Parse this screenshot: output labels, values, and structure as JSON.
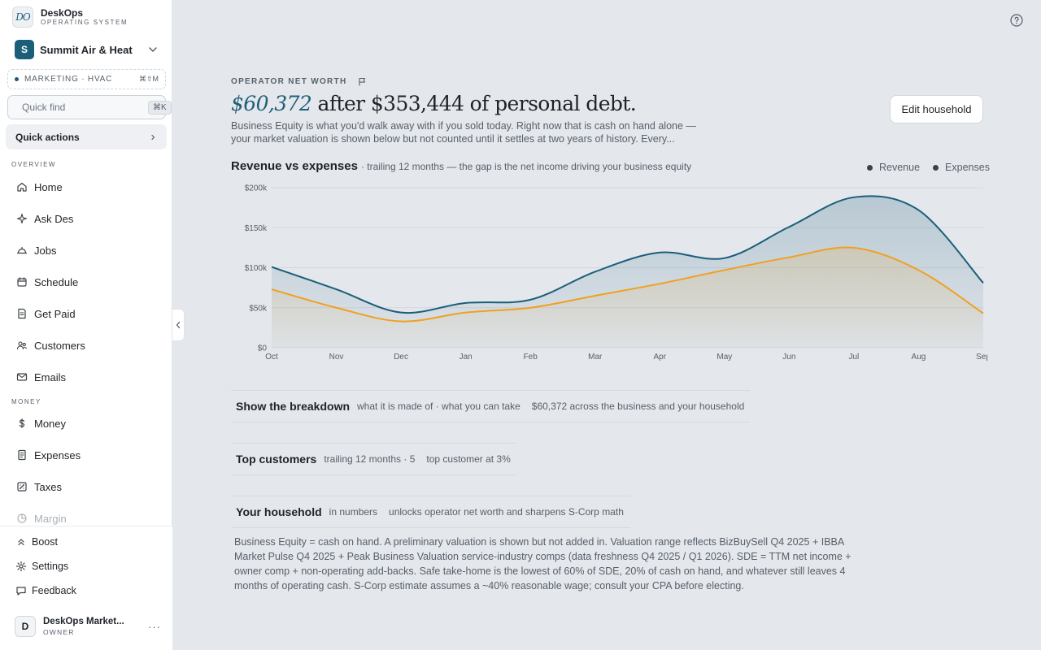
{
  "brand": {
    "name": "DeskOps",
    "subtitle": "OPERATING SYSTEM",
    "logo_text": "DO"
  },
  "org": {
    "initial": "S",
    "name": "Summit Air & Heat"
  },
  "tag": {
    "label": "MARKETING · HVAC",
    "shortcut": "⌘⇧M"
  },
  "search": {
    "placeholder": "Quick find",
    "shortcut": "⌘K"
  },
  "quick_actions": {
    "label": "Quick actions"
  },
  "sidebar": {
    "overview_label": "OVERVIEW",
    "overview_items": [
      {
        "label": "Home",
        "icon": "home-icon"
      },
      {
        "label": "Ask Des",
        "icon": "sparkle-icon"
      },
      {
        "label": "Jobs",
        "icon": "hardhat-icon"
      },
      {
        "label": "Schedule",
        "icon": "calendar-icon"
      },
      {
        "label": "Get Paid",
        "icon": "invoice-icon"
      },
      {
        "label": "Customers",
        "icon": "users-icon"
      },
      {
        "label": "Emails",
        "icon": "mail-icon"
      }
    ],
    "money_label": "MONEY",
    "money_items": [
      {
        "label": "Money",
        "icon": "dollar-icon"
      },
      {
        "label": "Expenses",
        "icon": "receipt-icon"
      },
      {
        "label": "Taxes",
        "icon": "tax-icon"
      },
      {
        "label": "Margin",
        "icon": "pie-icon"
      }
    ],
    "bottom_items": [
      {
        "label": "Boost",
        "icon": "boost-icon"
      },
      {
        "label": "Settings",
        "icon": "gear-icon"
      },
      {
        "label": "Feedback",
        "icon": "chat-icon"
      }
    ]
  },
  "user": {
    "initial": "D",
    "name": "DeskOps Market...",
    "role": "OWNER",
    "more": "···"
  },
  "header": {
    "eyebrow": "OPERATOR NET WORTH",
    "amount": "$60,372",
    "headline_rest": " after $353,444 of personal debt.",
    "subtext": "Business Equity is what you'd walk away with if you sold today. Right now that is cash on hand alone — your market valuation is shown below but not counted until it settles at two years of history. Every...",
    "edit_button": "Edit household"
  },
  "chart_section": {
    "title": "Revenue vs expenses",
    "subtitle": "· trailing 12 months — the gap is the net income driving your business equity"
  },
  "chart_data": {
    "type": "area",
    "title": "Revenue vs expenses",
    "categories": [
      "Oct",
      "Nov",
      "Dec",
      "Jan",
      "Feb",
      "Mar",
      "Apr",
      "May",
      "Jun",
      "Jul",
      "Aug",
      "Sep"
    ],
    "series": [
      {
        "name": "Revenue",
        "color": "#1b5e7a",
        "values": [
          101000,
          73000,
          44000,
          56000,
          60000,
          95000,
          119000,
          112000,
          151000,
          188000,
          172000,
          81000
        ]
      },
      {
        "name": "Expenses",
        "color": "#f0a020",
        "values": [
          73000,
          50000,
          33000,
          44000,
          50000,
          65000,
          80000,
          97000,
          113000,
          125000,
          97000,
          43000
        ]
      }
    ],
    "ylim": [
      0,
      200000
    ],
    "yticks": [
      0,
      50000,
      100000,
      150000,
      200000
    ],
    "ytick_labels": [
      "$0",
      "$50k",
      "$100k",
      "$150k",
      "$200k"
    ],
    "grid": true,
    "legend": "top-right"
  },
  "rows": [
    {
      "title": "Show the breakdown",
      "subtitle": "what it is made of · what you can take",
      "extra": "$60,372 across the business and your household"
    },
    {
      "title": "Top customers",
      "subtitle": "trailing 12 months · 5",
      "extra": "top customer at 3%"
    },
    {
      "title": "Your household",
      "subtitle": "in numbers",
      "extra": "unlocks operator net worth and sharpens S-Corp math"
    }
  ],
  "footnote": "Business Equity = cash on hand. A preliminary valuation is shown but not added in. Valuation range reflects BizBuySell Q4 2025 + IBBA Market Pulse Q4 2025 + Peak Business Valuation service-industry comps (data freshness Q4 2025 / Q1 2026). SDE = TTM net income + owner comp + non-operating add-backs. Safe take-home is the lowest of 60% of SDE, 20% of cash on hand, and whatever still leaves 4 months of operating cash. S-Corp estimate assumes a ~40% reasonable wage; consult your CPA before electing."
}
